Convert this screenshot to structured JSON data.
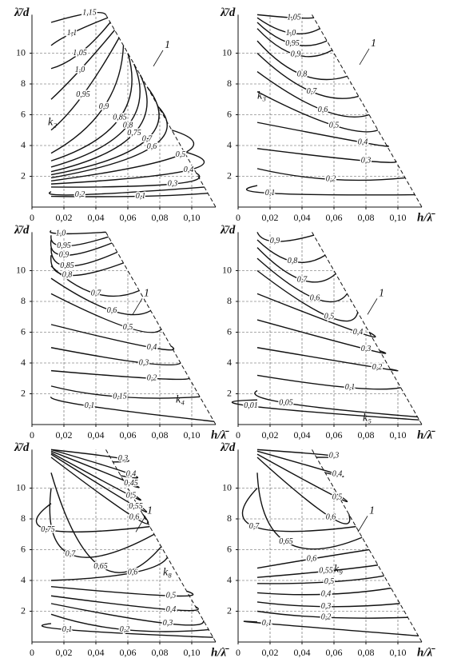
{
  "chart_data": [
    {
      "type": "contour",
      "y_label": "λ̄/d",
      "xlim": [
        0,
        0.115
      ],
      "ylim": [
        0,
        12.5
      ],
      "xticks": [
        0,
        {
          "value": 0.02,
          "label": "0,02"
        },
        {
          "value": 0.04,
          "label": "0,04"
        },
        {
          "value": 0.06,
          "label": "0,06"
        },
        {
          "value": 0.08,
          "label": "0,08"
        },
        {
          "value": 0.1,
          "label": "0,10"
        }
      ],
      "yticks": [
        2,
        4,
        6,
        8,
        10
      ],
      "grid": true,
      "values": [
        1.15,
        1.1,
        1.05,
        1.0,
        0.95,
        0.9,
        0.85,
        0.8,
        0.75,
        0.7,
        0.6,
        0.5,
        0.4,
        0.3,
        0.2,
        0.1
      ],
      "value_labels": [
        "1,15",
        "1,1",
        "1,05",
        "1,0",
        "0,95",
        "0,9",
        "0,85",
        "0,8",
        "0,75",
        "0,7",
        "0,6",
        "0,5",
        "0,4",
        "0,3",
        "0,2",
        "0,1"
      ],
      "boundary_label": "1",
      "coefficient_label": "k₂"
    },
    {
      "type": "contour",
      "x_label": "h/λ̄",
      "y_label": "λ̄/d",
      "xlim": [
        0,
        0.115
      ],
      "ylim": [
        0,
        12.5
      ],
      "xticks": [
        0,
        {
          "value": 0.02,
          "label": "0,02"
        },
        {
          "value": 0.04,
          "label": "0,04"
        },
        {
          "value": 0.06,
          "label": "0,06"
        },
        {
          "value": 0.08,
          "label": "0,08"
        },
        {
          "value": 0.1,
          "label": "0,10"
        }
      ],
      "yticks": [
        2,
        4,
        6,
        8,
        10
      ],
      "grid": true,
      "values": [
        1.05,
        1.0,
        0.95,
        0.9,
        0.8,
        0.7,
        0.6,
        0.5,
        0.4,
        0.3,
        0.2,
        0.1
      ],
      "value_labels": [
        "1,05",
        "1,0",
        "0,95",
        "0,9",
        "0,8",
        "0,7",
        "0,6",
        "0,5",
        "0,4",
        "0,3",
        "0,2",
        "0,1"
      ],
      "boundary_label": "1",
      "coefficient_label": "k₃"
    },
    {
      "type": "contour",
      "x_label": "h/λ̄",
      "y_label": "λ̄/d",
      "xlim": [
        0,
        0.115
      ],
      "ylim": [
        0,
        12.5
      ],
      "xticks": [
        0,
        {
          "value": 0.02,
          "label": "0,02"
        },
        {
          "value": 0.04,
          "label": "0,04"
        },
        {
          "value": 0.06,
          "label": "0,06"
        },
        {
          "value": 0.08,
          "label": "0,08"
        },
        {
          "value": 0.1,
          "label": "0,10"
        }
      ],
      "yticks": [
        2,
        4,
        6,
        8,
        10
      ],
      "grid": true,
      "values": [
        1.0,
        0.95,
        0.9,
        0.85,
        0.8,
        0.7,
        0.6,
        0.5,
        0.4,
        0.3,
        0.2,
        0.15,
        0.1
      ],
      "value_labels": [
        "1,0",
        "0,95",
        "0,9",
        "0,85",
        "0,8",
        "0,7",
        "0,6",
        "0,5",
        "0,4",
        "0,3",
        "0,2",
        "0,15",
        "0,1"
      ],
      "boundary_label": "1",
      "coefficient_label": "k₄"
    },
    {
      "type": "contour",
      "x_label": "h/λ̄",
      "y_label": "λ̄/d",
      "xlim": [
        0,
        0.115
      ],
      "ylim": [
        0,
        12.5
      ],
      "xticks": [
        0,
        {
          "value": 0.02,
          "label": "0,02"
        },
        {
          "value": 0.04,
          "label": "0,04"
        },
        {
          "value": 0.06,
          "label": "0,06"
        },
        {
          "value": 0.08,
          "label": "0,08"
        },
        {
          "value": 0.1,
          "label": "0,10"
        }
      ],
      "yticks": [
        2,
        4,
        6,
        8,
        10
      ],
      "grid": true,
      "values": [
        0.9,
        0.8,
        0.7,
        0.6,
        0.5,
        0.4,
        0.3,
        0.2,
        0.1,
        0.05,
        0.01
      ],
      "value_labels": [
        "0,9",
        "0,8",
        "0,7",
        "0,6",
        "0,5",
        "0,4",
        "0,3",
        "0,2",
        "0,1",
        "0,05",
        "0,01"
      ],
      "boundary_label": "1",
      "coefficient_label": "k₅"
    },
    {
      "type": "contour",
      "x_label": "h/λ̄",
      "y_label": "λ̄/d",
      "xlim": [
        0,
        0.115
      ],
      "ylim": [
        0,
        12.5
      ],
      "xticks": [
        0,
        {
          "value": 0.02,
          "label": "0,02"
        },
        {
          "value": 0.04,
          "label": "0,04"
        },
        {
          "value": 0.06,
          "label": "0,06"
        },
        {
          "value": 0.08,
          "label": "0,08"
        },
        {
          "value": 0.1,
          "label": "0,10"
        }
      ],
      "yticks": [
        2,
        4,
        6,
        8,
        10
      ],
      "grid": true,
      "values": [
        0.3,
        0.4,
        0.45,
        0.5,
        0.55,
        0.6,
        0.75,
        0.7,
        0.65,
        0.6,
        0.5,
        0.4,
        0.3,
        0.2,
        0.1
      ],
      "value_labels": [
        "0,3",
        "0,4",
        "0,45",
        "0,5",
        "0,55",
        "0,6",
        "0,75",
        "0,7",
        "0,65",
        "0,6",
        "0,5",
        "0,4",
        "0,3",
        "0,2",
        "0,1"
      ],
      "boundary_label": "1",
      "coefficient_label": "k₈"
    },
    {
      "type": "contour",
      "x_label": "h/λ̄",
      "y_label": "λ̄/d",
      "xlim": [
        0,
        0.115
      ],
      "ylim": [
        0,
        12.5
      ],
      "xticks": [
        0,
        {
          "value": 0.02,
          "label": "0,02"
        },
        {
          "value": 0.04,
          "label": "0,04"
        },
        {
          "value": 0.06,
          "label": "0,06"
        },
        {
          "value": 0.08,
          "label": "0,08"
        },
        {
          "value": 0.1,
          "label": "0,10"
        }
      ],
      "yticks": [
        2,
        4,
        6,
        8,
        10
      ],
      "grid": true,
      "values": [
        0.3,
        0.4,
        0.5,
        0.6,
        0.7,
        0.65,
        0.6,
        0.55,
        0.5,
        0.4,
        0.3,
        0.2,
        0.1
      ],
      "value_labels": [
        "0,3",
        "0,4",
        "0,5",
        "0,6",
        "0,7",
        "0,65",
        "0,6",
        "0,55",
        "0,5",
        "0,4",
        "0,3",
        "0,2",
        "0,1"
      ],
      "boundary_label": "1",
      "coefficient_label": "k₉"
    }
  ]
}
